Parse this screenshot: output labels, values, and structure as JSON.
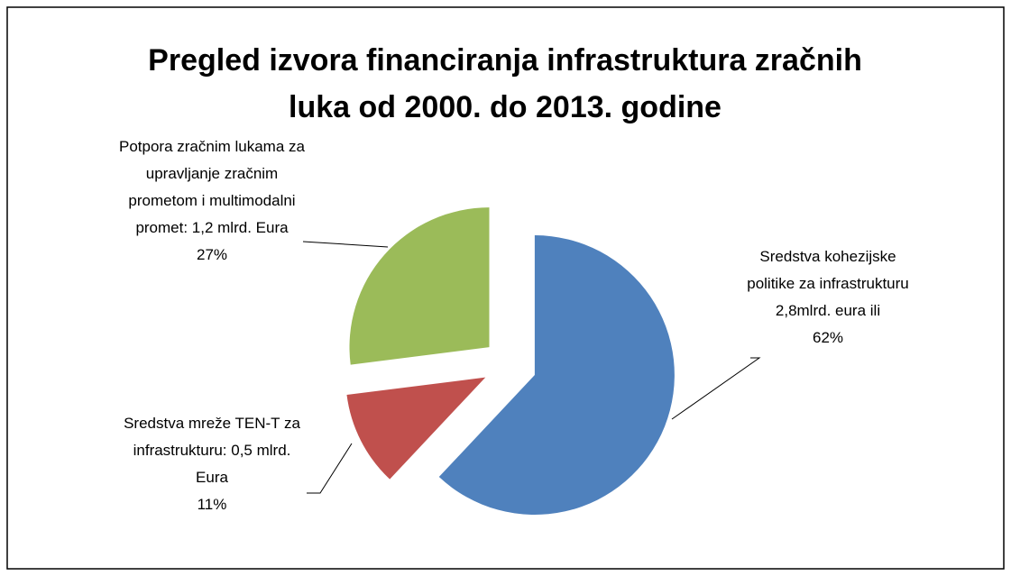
{
  "chart_data": {
    "type": "pie",
    "title": "Pregled izvora financiranja infrastruktura zračnih luka od 2000. do 2013. godine",
    "categories": [
      "Sredstva kohezijske politike za infrastrukturu 2,8mlrd. eura ili",
      "Sredstva mreže TEN-T za infrastrukturu: 0,5 mlrd. Eura",
      "Potpora zračnim lukama za upravljanje zračnim prometom i multimodalni promet: 1,2 mlrd. Eura"
    ],
    "values": [
      62,
      11,
      27
    ],
    "value_labels": [
      "62%",
      "11%",
      "27%"
    ],
    "colors": [
      "#4f81bd",
      "#c0504d",
      "#9bbb59"
    ]
  }
}
